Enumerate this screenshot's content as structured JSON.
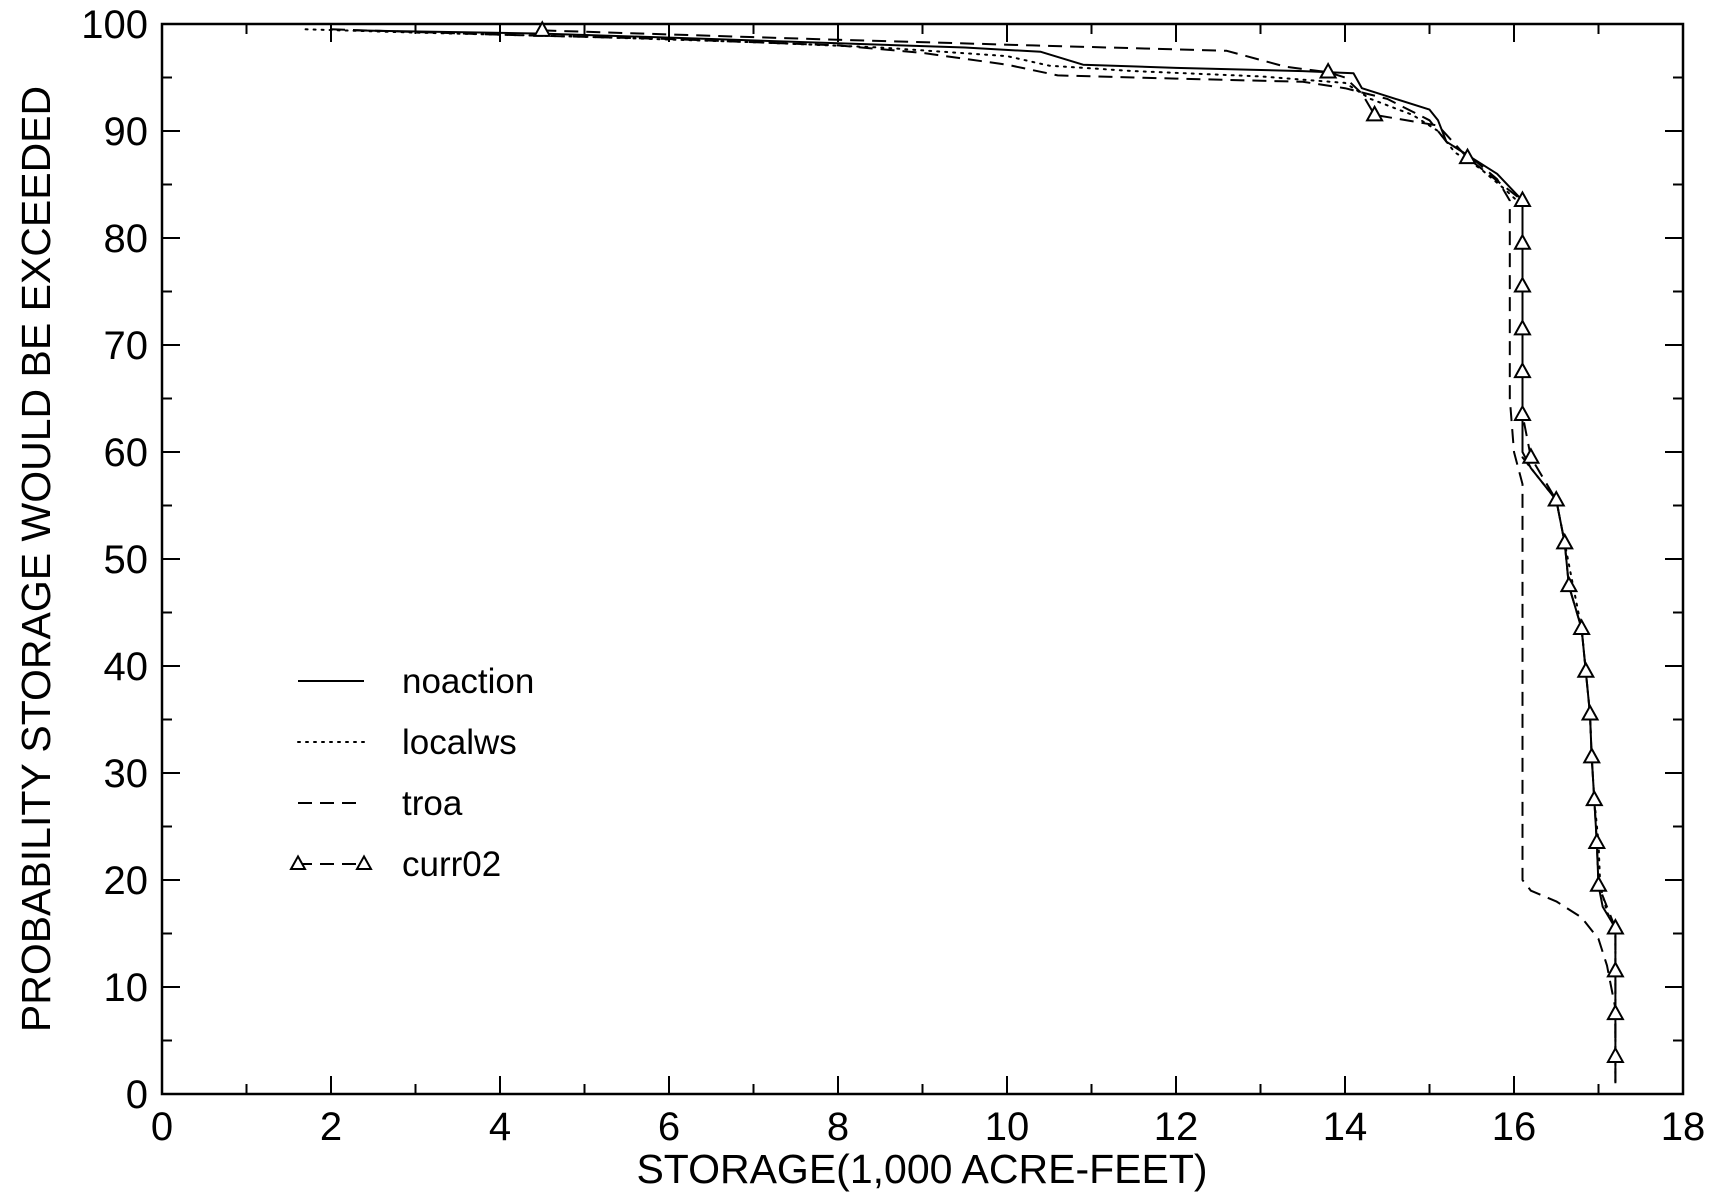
{
  "chart_data": {
    "type": "line",
    "xlabel": "STORAGE(1,000 ACRE-FEET)",
    "ylabel": "PROBABILITY STORAGE WOULD BE EXCEEDED",
    "xlim": [
      0,
      18
    ],
    "ylim": [
      0,
      100
    ],
    "xticks": [
      "0",
      "2",
      "4",
      "6",
      "8",
      "10",
      "12",
      "14",
      "16",
      "18"
    ],
    "yticks": [
      "0",
      "10",
      "20",
      "30",
      "40",
      "50",
      "60",
      "70",
      "80",
      "90",
      "100"
    ],
    "grid": false,
    "legend_position": "left-middle",
    "series": [
      {
        "name": "noaction",
        "style": "solid",
        "marker": "none",
        "points": [
          [
            2.3,
            99.4
          ],
          [
            4.5,
            99.1
          ],
          [
            6.5,
            98.6
          ],
          [
            8.0,
            98.2
          ],
          [
            9.5,
            97.8
          ],
          [
            10.4,
            97.4
          ],
          [
            10.9,
            96.2
          ],
          [
            12.0,
            95.9
          ],
          [
            13.5,
            95.6
          ],
          [
            14.1,
            95.4
          ],
          [
            14.2,
            94.0
          ],
          [
            14.6,
            93.0
          ],
          [
            15.0,
            92.0
          ],
          [
            15.1,
            91.0
          ],
          [
            15.2,
            89.0
          ],
          [
            15.5,
            87.5
          ],
          [
            15.8,
            86.0
          ],
          [
            16.1,
            83.5
          ],
          [
            16.1,
            79.5
          ],
          [
            16.1,
            75.5
          ],
          [
            16.1,
            71.5
          ],
          [
            16.1,
            67.5
          ],
          [
            16.1,
            63.5
          ],
          [
            16.1,
            60.0
          ],
          [
            16.2,
            58.5
          ],
          [
            16.5,
            55.5
          ],
          [
            16.6,
            51.5
          ],
          [
            16.65,
            47.5
          ],
          [
            16.8,
            43.5
          ],
          [
            16.85,
            39.5
          ],
          [
            16.9,
            35.5
          ],
          [
            16.92,
            31.5
          ],
          [
            16.95,
            27.5
          ],
          [
            16.98,
            23.5
          ],
          [
            17.0,
            19.5
          ],
          [
            17.05,
            17.5
          ],
          [
            17.2,
            15.5
          ],
          [
            17.2,
            11.5
          ],
          [
            17.2,
            7.5
          ],
          [
            17.2,
            3.5
          ],
          [
            17.2,
            1.0
          ]
        ]
      },
      {
        "name": "localws",
        "style": "dotted",
        "marker": "none",
        "points": [
          [
            1.7,
            99.5
          ],
          [
            3.0,
            99.2
          ],
          [
            5.0,
            98.8
          ],
          [
            7.0,
            98.3
          ],
          [
            8.5,
            97.8
          ],
          [
            10.0,
            97.0
          ],
          [
            10.5,
            96.1
          ],
          [
            11.5,
            95.6
          ],
          [
            13.0,
            95.1
          ],
          [
            14.0,
            94.5
          ],
          [
            14.3,
            93.0
          ],
          [
            14.8,
            91.5
          ],
          [
            15.1,
            90.0
          ],
          [
            15.3,
            88.0
          ],
          [
            15.6,
            86.5
          ],
          [
            15.9,
            84.5
          ],
          [
            16.1,
            83.0
          ],
          [
            16.1,
            79.5
          ],
          [
            16.1,
            75.5
          ],
          [
            16.1,
            71.5
          ],
          [
            16.1,
            67.5
          ],
          [
            16.1,
            63.5
          ],
          [
            16.1,
            59.5
          ],
          [
            16.2,
            58.5
          ],
          [
            16.5,
            55.5
          ],
          [
            16.6,
            51.5
          ],
          [
            16.7,
            47.5
          ],
          [
            16.8,
            43.5
          ],
          [
            16.85,
            39.5
          ],
          [
            16.9,
            35.5
          ],
          [
            16.92,
            31.5
          ],
          [
            16.95,
            27.5
          ],
          [
            17.0,
            23.5
          ],
          [
            17.02,
            19.5
          ],
          [
            17.1,
            17.0
          ],
          [
            17.2,
            15.5
          ],
          [
            17.2,
            11.5
          ],
          [
            17.2,
            7.5
          ],
          [
            17.2,
            3.5
          ],
          [
            17.2,
            1.0
          ]
        ]
      },
      {
        "name": "troa",
        "style": "dashed",
        "marker": "none",
        "points": [
          [
            2.0,
            99.5
          ],
          [
            4.0,
            99.0
          ],
          [
            6.0,
            98.6
          ],
          [
            8.0,
            98.0
          ],
          [
            9.0,
            97.3
          ],
          [
            10.0,
            96.2
          ],
          [
            10.6,
            95.2
          ],
          [
            12.0,
            94.9
          ],
          [
            13.5,
            94.6
          ],
          [
            14.0,
            94.0
          ],
          [
            14.5,
            93.0
          ],
          [
            15.0,
            91.0
          ],
          [
            15.2,
            89.0
          ],
          [
            15.5,
            87.5
          ],
          [
            15.8,
            85.5
          ],
          [
            15.95,
            83.5
          ],
          [
            15.95,
            75.0
          ],
          [
            15.95,
            65.0
          ],
          [
            16.0,
            60.0
          ],
          [
            16.1,
            57.0
          ],
          [
            16.1,
            40.0
          ],
          [
            16.1,
            30.0
          ],
          [
            16.1,
            20.0
          ],
          [
            16.2,
            19.0
          ],
          [
            16.5,
            18.0
          ],
          [
            16.8,
            16.5
          ],
          [
            17.0,
            14.5
          ],
          [
            17.1,
            12.0
          ],
          [
            17.15,
            10.0
          ],
          [
            17.2,
            8.0
          ],
          [
            17.2,
            4.0
          ],
          [
            17.2,
            1.0
          ]
        ]
      },
      {
        "name": "curr02",
        "style": "dashed",
        "marker": "triangle",
        "points": [
          [
            4.5,
            99.4
          ],
          [
            7.7,
            98.6
          ],
          [
            10.3,
            98.0
          ],
          [
            12.6,
            97.5
          ],
          [
            13.3,
            96.0
          ],
          [
            13.8,
            95.5
          ],
          [
            14.0,
            95.0
          ],
          [
            14.2,
            93.5
          ],
          [
            14.35,
            91.5
          ],
          [
            15.1,
            90.5
          ],
          [
            15.45,
            87.5
          ],
          [
            16.1,
            83.5
          ],
          [
            16.1,
            79.5
          ],
          [
            16.1,
            75.5
          ],
          [
            16.1,
            71.5
          ],
          [
            16.1,
            67.5
          ],
          [
            16.1,
            63.5
          ],
          [
            16.2,
            59.5
          ],
          [
            16.5,
            55.5
          ],
          [
            16.6,
            51.5
          ],
          [
            16.65,
            47.5
          ],
          [
            16.8,
            43.5
          ],
          [
            16.85,
            39.5
          ],
          [
            16.9,
            35.5
          ],
          [
            16.92,
            31.5
          ],
          [
            16.95,
            27.5
          ],
          [
            16.98,
            23.5
          ],
          [
            17.0,
            19.5
          ],
          [
            17.2,
            15.5
          ],
          [
            17.2,
            11.5
          ],
          [
            17.2,
            7.5
          ],
          [
            17.2,
            3.5
          ]
        ],
        "marker_points": [
          [
            4.5,
            99.4
          ],
          [
            13.8,
            95.5
          ],
          [
            14.35,
            91.5
          ],
          [
            15.45,
            87.5
          ],
          [
            16.1,
            83.5
          ],
          [
            16.1,
            79.5
          ],
          [
            16.1,
            75.5
          ],
          [
            16.1,
            71.5
          ],
          [
            16.1,
            67.5
          ],
          [
            16.1,
            63.5
          ],
          [
            16.2,
            59.5
          ],
          [
            16.5,
            55.5
          ],
          [
            16.6,
            51.5
          ],
          [
            16.65,
            47.5
          ],
          [
            16.8,
            43.5
          ],
          [
            16.85,
            39.5
          ],
          [
            16.9,
            35.5
          ],
          [
            16.92,
            31.5
          ],
          [
            16.95,
            27.5
          ],
          [
            16.98,
            23.5
          ],
          [
            17.0,
            19.5
          ],
          [
            17.2,
            15.5
          ],
          [
            17.2,
            11.5
          ],
          [
            17.2,
            7.5
          ],
          [
            17.2,
            3.5
          ]
        ]
      }
    ]
  }
}
